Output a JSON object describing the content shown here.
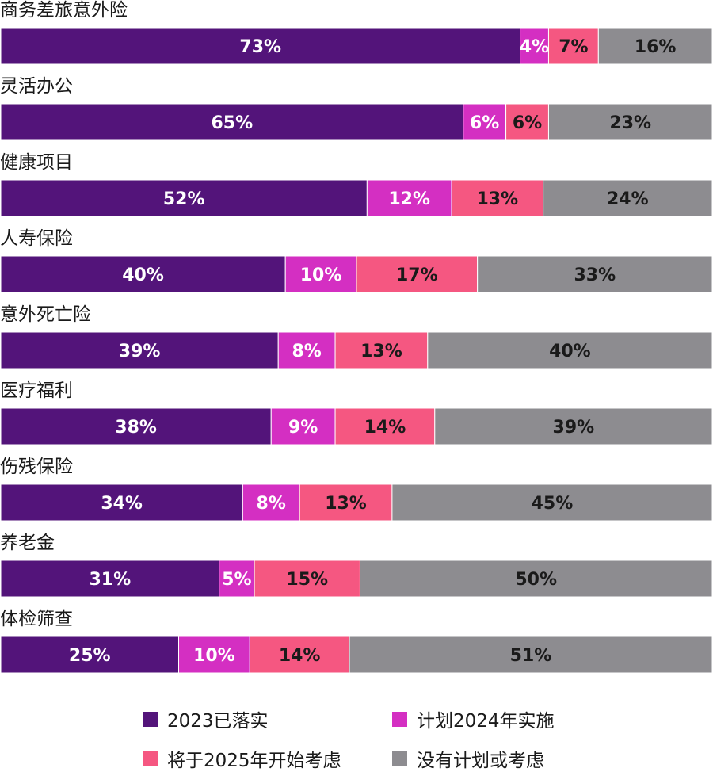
{
  "chart_data": {
    "type": "bar",
    "orientation": "horizontal",
    "stacked": true,
    "normalized": true,
    "categories": [
      "商务差旅意外险",
      "灵活办公",
      "健康项目",
      "人寿保险",
      "意外死亡险",
      "医疗福利",
      "伤残保险",
      "养老金",
      "体检筛查"
    ],
    "series": [
      {
        "name": "2023已落实",
        "color": "#53147a",
        "label_color": "#ffffff",
        "values": [
          73,
          65,
          52,
          40,
          39,
          38,
          34,
          31,
          25
        ]
      },
      {
        "name": "计划2024年实施",
        "color": "#d42fc2",
        "label_color": "#ffffff",
        "values": [
          4,
          6,
          12,
          10,
          8,
          9,
          8,
          5,
          10
        ]
      },
      {
        "name": "将于2025年开始考虑",
        "color": "#f55781",
        "label_color": "#1a1a1a",
        "values": [
          7,
          6,
          13,
          17,
          13,
          14,
          13,
          15,
          14
        ]
      },
      {
        "name": "没有计划或考虑",
        "color": "#8d8c90",
        "label_color": "#1a1a1a",
        "values": [
          16,
          23,
          24,
          33,
          40,
          39,
          45,
          50,
          51
        ]
      }
    ],
    "value_suffix": "%",
    "legend": {
      "position": "bottom",
      "columns": 2
    },
    "grid": false
  }
}
